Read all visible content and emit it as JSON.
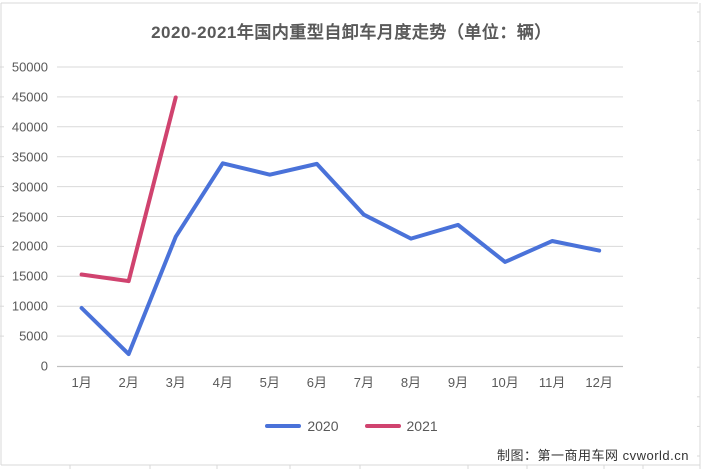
{
  "title": "2020-2021年国内重型自卸车月度走势（单位：辆）",
  "attribution": "制图：第一商用车网 cvworld.cn",
  "colors": {
    "series_2020": "#4a72d9",
    "series_2021": "#d0436f",
    "grid": "#d9d9d9",
    "axis": "#bfbfbf",
    "frame": "#d9d9d9",
    "tick_text": "#595959",
    "title_text": "#595959",
    "attribution_text": "#333333"
  },
  "chart_data": {
    "type": "line",
    "title": "2020-2021年国内重型自卸车月度走势（单位：辆）",
    "categories": [
      "1月",
      "2月",
      "3月",
      "4月",
      "5月",
      "6月",
      "7月",
      "8月",
      "9月",
      "10月",
      "11月",
      "12月"
    ],
    "series": [
      {
        "name": "2020",
        "color_key": "series_2020",
        "values": [
          9700,
          2000,
          21600,
          33900,
          32000,
          33800,
          25300,
          21300,
          23600,
          17400,
          20900,
          19300
        ]
      },
      {
        "name": "2021",
        "color_key": "series_2021",
        "values": [
          15300,
          14200,
          44900
        ]
      }
    ],
    "ylim": [
      0,
      50000
    ],
    "y_tick_step": 5000,
    "y_tick_labels": [
      "0",
      "5000",
      "10000",
      "15000",
      "20000",
      "25000",
      "30000",
      "35000",
      "40000",
      "45000",
      "50000"
    ],
    "grid": "horizontal-on",
    "legend_position": "bottom-center"
  },
  "legend": {
    "items": [
      {
        "label": "2020"
      },
      {
        "label": "2021"
      }
    ]
  }
}
